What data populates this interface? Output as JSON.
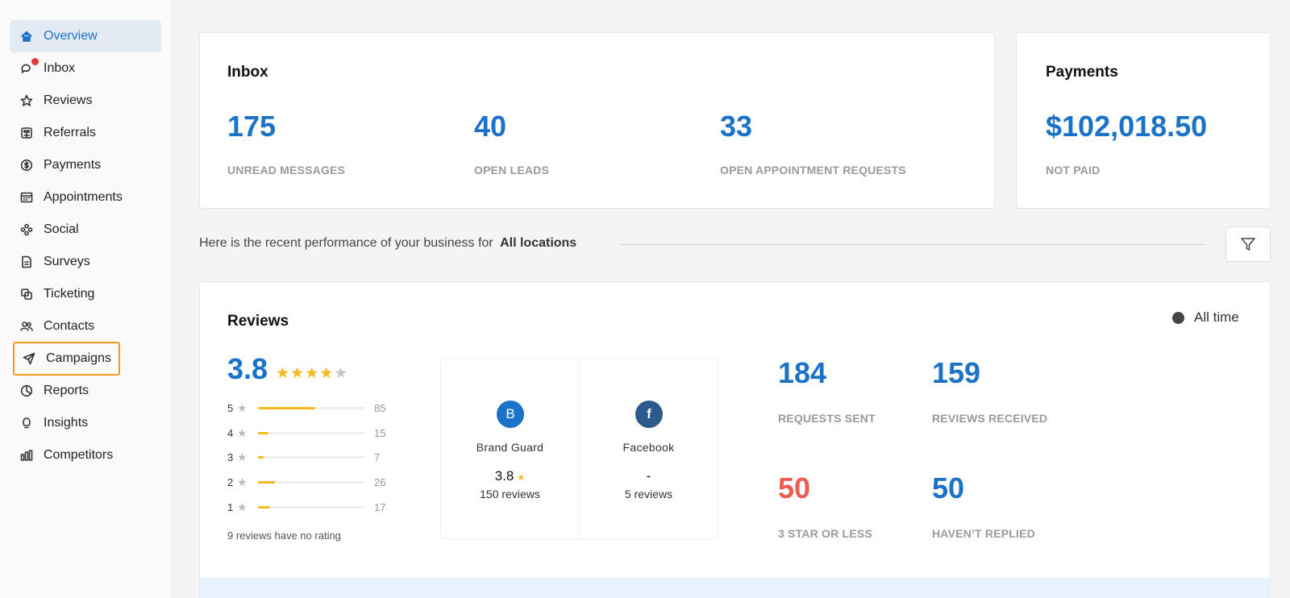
{
  "sidebar": {
    "items": [
      {
        "label": "Overview",
        "icon": "home-icon"
      },
      {
        "label": "Inbox",
        "icon": "chat-icon"
      },
      {
        "label": "Reviews",
        "icon": "star-icon"
      },
      {
        "label": "Referrals",
        "icon": "referral-icon"
      },
      {
        "label": "Payments",
        "icon": "dollar-icon"
      },
      {
        "label": "Appointments",
        "icon": "calendar-icon"
      },
      {
        "label": "Social",
        "icon": "social-icon"
      },
      {
        "label": "Surveys",
        "icon": "survey-icon"
      },
      {
        "label": "Ticketing",
        "icon": "ticket-icon"
      },
      {
        "label": "Contacts",
        "icon": "contacts-icon"
      },
      {
        "label": "Campaigns",
        "icon": "send-icon"
      },
      {
        "label": "Reports",
        "icon": "chart-pie-icon"
      },
      {
        "label": "Insights",
        "icon": "lightbulb-icon"
      },
      {
        "label": "Competitors",
        "icon": "bar-chart-icon"
      }
    ]
  },
  "inbox": {
    "title": "Inbox",
    "stats": [
      {
        "value": "175",
        "label": "UNREAD MESSAGES"
      },
      {
        "value": "40",
        "label": "OPEN LEADS"
      },
      {
        "value": "33",
        "label": "OPEN APPOINTMENT REQUESTS"
      }
    ]
  },
  "payments": {
    "title": "Payments",
    "value": "$102,018.50",
    "label": "NOT PAID"
  },
  "performance": {
    "text": "Here is the recent performance of your business for",
    "location": "All locations"
  },
  "reviews": {
    "title": "Reviews",
    "period": "All time",
    "rating": "3.8",
    "stars_filled": 4,
    "distribution": [
      {
        "stars": "5",
        "count": "85",
        "fraction": 0.54
      },
      {
        "stars": "4",
        "count": "15",
        "fraction": 0.1
      },
      {
        "stars": "3",
        "count": "7",
        "fraction": 0.05
      },
      {
        "stars": "2",
        "count": "26",
        "fraction": 0.16
      },
      {
        "stars": "1",
        "count": "17",
        "fraction": 0.11
      }
    ],
    "no_rating": "9 reviews have no rating",
    "sources": [
      {
        "name": "Brand Guard",
        "logo": "B",
        "rating": "3.8",
        "count": "150 reviews",
        "color": "#1a73c9"
      },
      {
        "name": "Facebook",
        "logo": "f",
        "rating": "-",
        "count": "5 reviews",
        "color": "#2d5a8c"
      }
    ],
    "stats": [
      {
        "value": "184",
        "label": "REQUESTS SENT",
        "color": "#1a73c9"
      },
      {
        "value": "159",
        "label": "REVIEWS RECEIVED",
        "color": "#1a73c9"
      },
      {
        "value": "50",
        "label": "3 STAR OR LESS",
        "color": "#ef5c4e"
      },
      {
        "value": "50",
        "label": "HAVEN’T REPLIED",
        "color": "#1a73c9"
      }
    ]
  }
}
